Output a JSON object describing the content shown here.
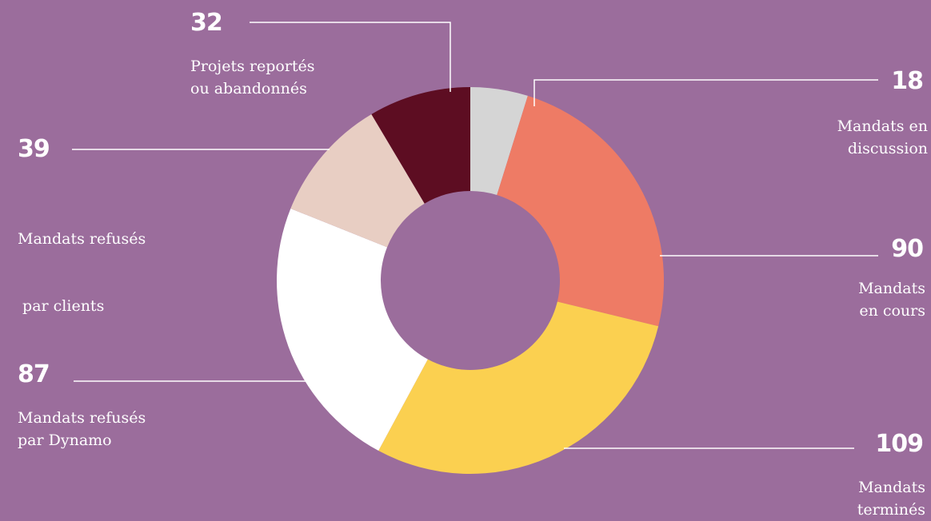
{
  "colors": {
    "background": "#9b6d9c",
    "leader_line": "#ffffff",
    "text": "#ffffff"
  },
  "chart_data": {
    "type": "pie",
    "donut": true,
    "slices": [
      {
        "value": 18,
        "label_line1": "Mandats en",
        "label_line2": "discussion",
        "color": "#d5d5d5"
      },
      {
        "value": 90,
        "label_line1": "Mandats",
        "label_line2": "en cours",
        "color": "#ee7b65"
      },
      {
        "value": 109,
        "label_line1": "Mandats",
        "label_line2": "terminés",
        "color": "#fbd050"
      },
      {
        "value": 87,
        "label_line1": "Mandats refusés",
        "label_line2": "par Dynamo",
        "color": "#ffffff"
      },
      {
        "value": 39,
        "label_line1": "Mandats refusés",
        "label_line2": " par clients",
        "color": "#e8cec3"
      },
      {
        "value": 32,
        "label_line1": "Projets reportés",
        "label_line2": "ou abandonnés",
        "color": "#5d0d22"
      }
    ]
  }
}
